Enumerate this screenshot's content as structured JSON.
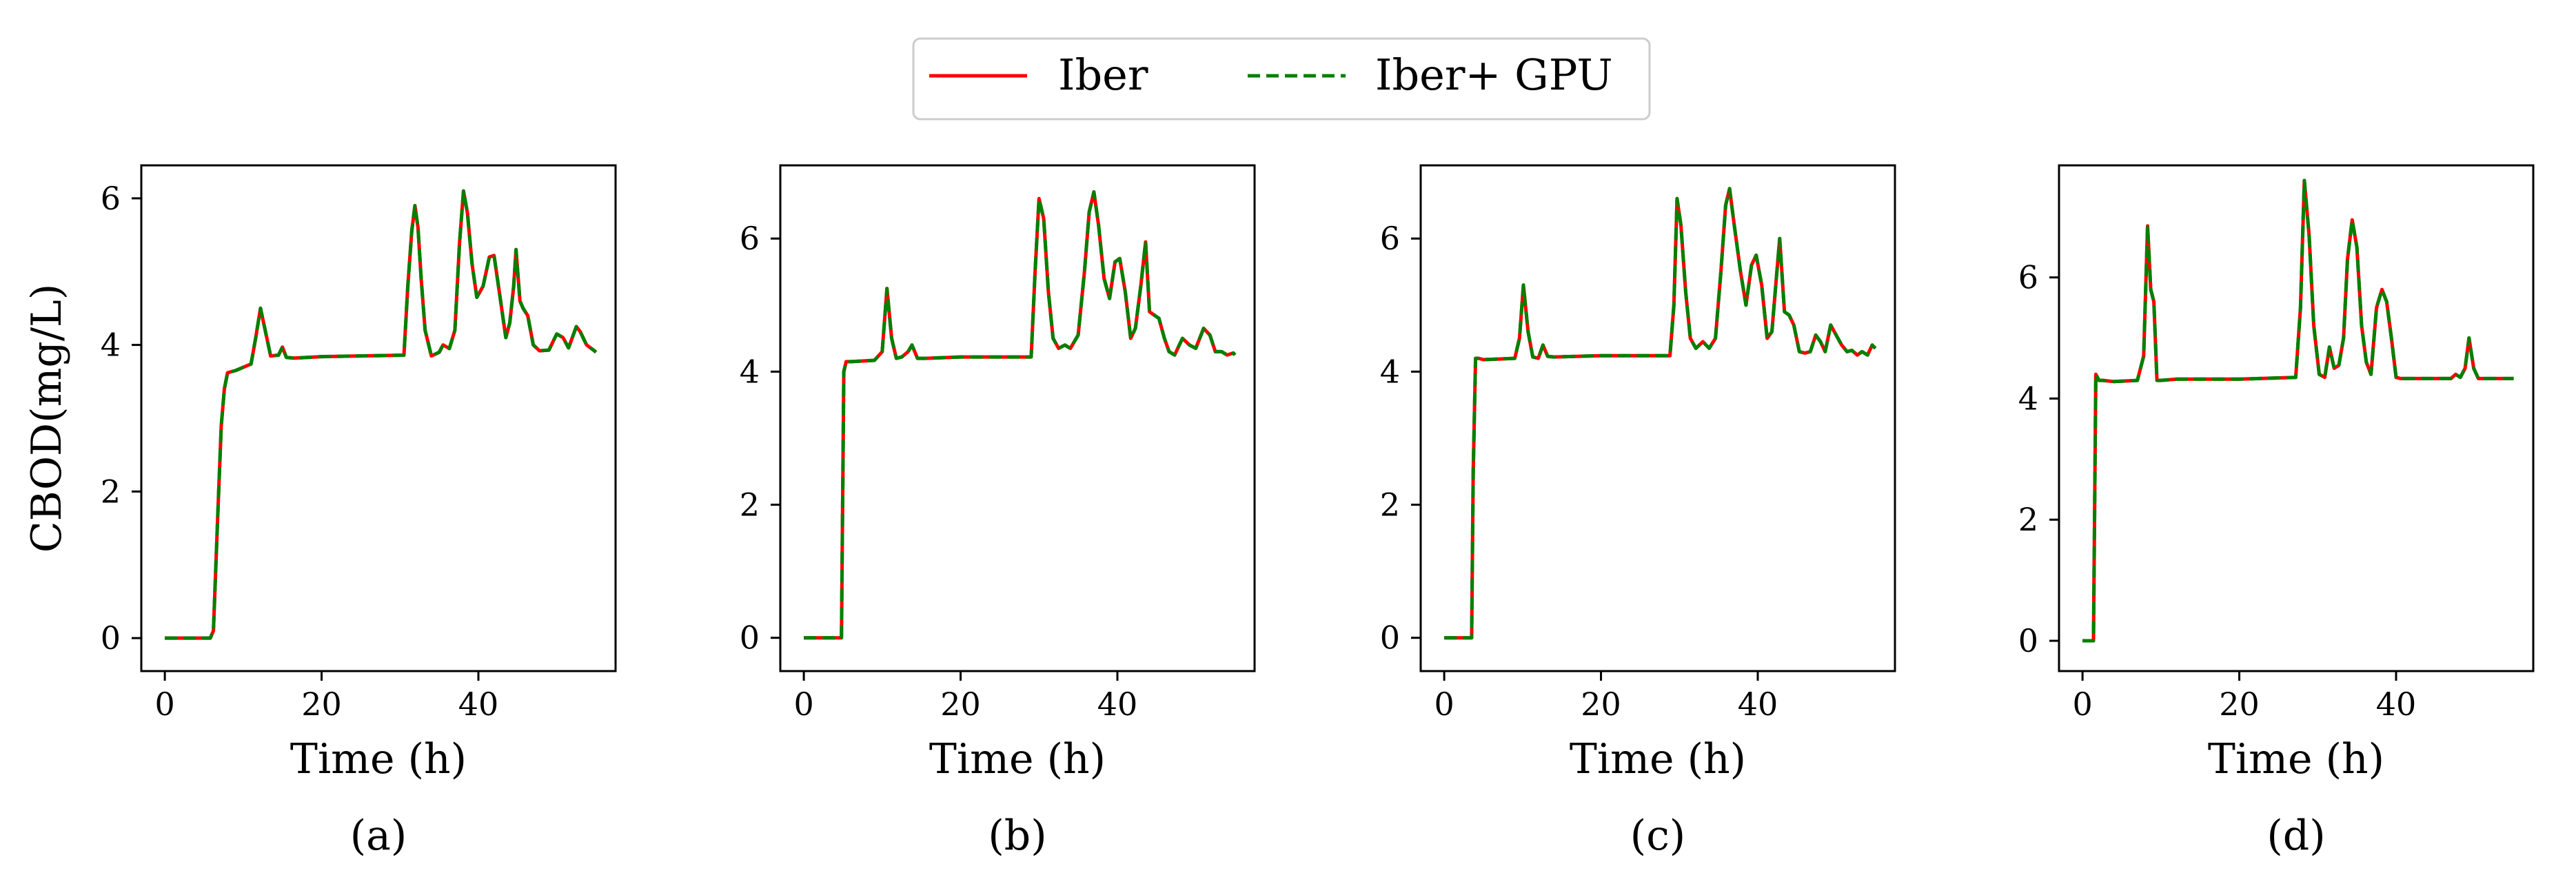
{
  "legend": {
    "entries": [
      {
        "label": "Iber",
        "color": "#ff0000",
        "style": "solid"
      },
      {
        "label": "Iber+ GPU",
        "color": "#008000",
        "style": "dashed"
      }
    ]
  },
  "chart_data": [
    {
      "type": "line",
      "panel_label": "(a)",
      "xlabel": "Time (h)",
      "ylabel": "CBOD(mg/L)",
      "xlim": [
        -3,
        57.5
      ],
      "ylim": [
        -0.45,
        6.45
      ],
      "xticks": [
        0,
        20,
        40
      ],
      "yticks": [
        0,
        2,
        4,
        6
      ],
      "series": [
        {
          "name": "Iber",
          "color": "#ff0000",
          "x": [
            0,
            5.8,
            6.2,
            6.8,
            7.2,
            7.6,
            8,
            9,
            11,
            11.6,
            12.2,
            12.8,
            13.5,
            14.5,
            15,
            15.5,
            16.5,
            20,
            30.5,
            31,
            31.5,
            31.9,
            32.3,
            32.7,
            33.2,
            34,
            35,
            35.5,
            36.3,
            37,
            37.6,
            38.1,
            38.6,
            39.2,
            39.8,
            40.6,
            41.4,
            42,
            42.7,
            43.5,
            44,
            44.5,
            44.8,
            45.3,
            45.7,
            46.3,
            47,
            47.8,
            49,
            50,
            50.8,
            51.5,
            52.5,
            53,
            53.8,
            54.8,
            55
          ],
          "y": [
            0,
            0,
            0.1,
            1.8,
            2.9,
            3.4,
            3.62,
            3.65,
            3.74,
            4.1,
            4.5,
            4.2,
            3.85,
            3.86,
            3.97,
            3.83,
            3.82,
            3.84,
            3.86,
            4.8,
            5.55,
            5.9,
            5.6,
            4.9,
            4.2,
            3.85,
            3.9,
            4.0,
            3.95,
            4.2,
            5.4,
            6.1,
            5.8,
            5.1,
            4.65,
            4.8,
            5.2,
            5.22,
            4.7,
            4.1,
            4.3,
            4.8,
            5.3,
            4.6,
            4.5,
            4.4,
            4.0,
            3.92,
            3.93,
            4.15,
            4.1,
            3.96,
            4.25,
            4.18,
            4.0,
            3.92,
            3.9
          ]
        },
        {
          "name": "Iber+ GPU",
          "color": "#008000",
          "x": [
            0,
            5.8,
            6.2,
            6.8,
            7.2,
            7.6,
            8,
            9,
            11,
            11.6,
            12.2,
            12.8,
            13.5,
            14.5,
            15,
            15.5,
            16.5,
            20,
            30.5,
            31,
            31.5,
            31.9,
            32.3,
            32.7,
            33.2,
            34,
            35,
            35.5,
            36.3,
            37,
            37.6,
            38.1,
            38.6,
            39.2,
            39.8,
            40.6,
            41.4,
            42,
            42.7,
            43.5,
            44,
            44.5,
            44.8,
            45.3,
            45.7,
            46.3,
            47,
            47.8,
            49,
            50,
            50.8,
            51.5,
            52.5,
            53,
            53.8,
            54.8,
            55
          ],
          "y": [
            0,
            0,
            0.1,
            1.8,
            2.9,
            3.4,
            3.62,
            3.65,
            3.74,
            4.1,
            4.5,
            4.2,
            3.85,
            3.86,
            3.97,
            3.83,
            3.82,
            3.84,
            3.86,
            4.8,
            5.55,
            5.9,
            5.6,
            4.9,
            4.2,
            3.85,
            3.9,
            4.0,
            3.95,
            4.2,
            5.4,
            6.1,
            5.8,
            5.1,
            4.65,
            4.8,
            5.2,
            5.22,
            4.7,
            4.1,
            4.3,
            4.8,
            5.3,
            4.6,
            4.5,
            4.4,
            4.0,
            3.92,
            3.93,
            4.15,
            4.1,
            3.96,
            4.25,
            4.18,
            4.0,
            3.92,
            3.9
          ]
        }
      ]
    },
    {
      "type": "line",
      "panel_label": "(b)",
      "xlabel": "Time (h)",
      "ylabel": "",
      "xlim": [
        -3,
        57.5
      ],
      "ylim": [
        -0.5,
        7.1
      ],
      "xticks": [
        0,
        20,
        40
      ],
      "yticks": [
        0,
        2,
        4,
        6
      ],
      "series": [
        {
          "name": "Iber",
          "color": "#ff0000",
          "x": [
            0,
            4.8,
            5.1,
            5.4,
            6,
            9,
            10,
            10.6,
            11.2,
            11.8,
            12.5,
            13.3,
            13.8,
            14.5,
            15.5,
            20,
            29,
            29.5,
            30,
            30.6,
            31.2,
            31.8,
            32.5,
            33.3,
            34,
            35,
            35.8,
            36.4,
            37,
            37.6,
            38.3,
            39,
            39.7,
            40.3,
            41,
            41.7,
            42.3,
            43,
            43.6,
            44.1,
            44.7,
            45.3,
            46,
            46.6,
            47.3,
            48.3,
            49.2,
            50,
            51,
            51.8,
            52.5,
            53.3,
            54,
            54.8,
            55
          ],
          "y": [
            0,
            0,
            4.0,
            4.15,
            4.15,
            4.17,
            4.3,
            5.25,
            4.5,
            4.2,
            4.22,
            4.3,
            4.4,
            4.2,
            4.2,
            4.22,
            4.22,
            5.5,
            6.6,
            6.3,
            5.2,
            4.5,
            4.35,
            4.4,
            4.35,
            4.55,
            5.5,
            6.4,
            6.7,
            6.2,
            5.4,
            5.1,
            5.65,
            5.7,
            5.2,
            4.5,
            4.65,
            5.3,
            5.95,
            4.9,
            4.85,
            4.8,
            4.5,
            4.3,
            4.25,
            4.5,
            4.4,
            4.35,
            4.65,
            4.55,
            4.3,
            4.3,
            4.25,
            4.28,
            4.25
          ]
        },
        {
          "name": "Iber+ GPU",
          "color": "#008000",
          "x": [
            0,
            4.8,
            5.1,
            5.4,
            6,
            9,
            10,
            10.6,
            11.2,
            11.8,
            12.5,
            13.3,
            13.8,
            14.5,
            15.5,
            20,
            29,
            29.5,
            30,
            30.6,
            31.2,
            31.8,
            32.5,
            33.3,
            34,
            35,
            35.8,
            36.4,
            37,
            37.6,
            38.3,
            39,
            39.7,
            40.3,
            41,
            41.7,
            42.3,
            43,
            43.6,
            44.1,
            44.7,
            45.3,
            46,
            46.6,
            47.3,
            48.3,
            49.2,
            50,
            51,
            51.8,
            52.5,
            53.3,
            54,
            54.8,
            55
          ],
          "y": [
            0,
            0,
            4.0,
            4.15,
            4.15,
            4.17,
            4.3,
            5.25,
            4.5,
            4.2,
            4.22,
            4.3,
            4.4,
            4.2,
            4.2,
            4.22,
            4.22,
            5.5,
            6.6,
            6.3,
            5.2,
            4.5,
            4.35,
            4.4,
            4.35,
            4.55,
            5.5,
            6.4,
            6.7,
            6.2,
            5.4,
            5.1,
            5.65,
            5.7,
            5.2,
            4.5,
            4.65,
            5.3,
            5.95,
            4.9,
            4.85,
            4.8,
            4.5,
            4.3,
            4.25,
            4.5,
            4.4,
            4.35,
            4.65,
            4.55,
            4.3,
            4.3,
            4.25,
            4.28,
            4.25
          ]
        }
      ]
    },
    {
      "type": "line",
      "panel_label": "(c)",
      "xlabel": "Time (h)",
      "ylabel": "",
      "xlim": [
        -3,
        57.5
      ],
      "ylim": [
        -0.5,
        7.1
      ],
      "xticks": [
        0,
        20,
        40
      ],
      "yticks": [
        0,
        2,
        4,
        6
      ],
      "series": [
        {
          "name": "Iber",
          "color": "#ff0000",
          "x": [
            0,
            3.5,
            3.7,
            4.0,
            4.4,
            5,
            9,
            9.6,
            10.1,
            10.7,
            11.3,
            12,
            12.6,
            13.2,
            14,
            20,
            28.8,
            29.3,
            29.7,
            30.2,
            30.8,
            31.4,
            32.1,
            33,
            33.8,
            34.6,
            35.3,
            35.9,
            36.4,
            37,
            37.8,
            38.5,
            39.2,
            39.8,
            40.5,
            41.2,
            41.8,
            42.3,
            42.8,
            43.4,
            44,
            44.6,
            45.3,
            46,
            46.7,
            47.4,
            48,
            48.6,
            49.3,
            50,
            50.7,
            51.4,
            52,
            52.7,
            53.3,
            54,
            54.6,
            55
          ],
          "y": [
            0,
            0,
            2.5,
            4.2,
            4.2,
            4.18,
            4.2,
            4.5,
            5.3,
            4.6,
            4.22,
            4.2,
            4.4,
            4.23,
            4.22,
            4.24,
            4.24,
            5.0,
            6.6,
            6.2,
            5.2,
            4.5,
            4.35,
            4.45,
            4.35,
            4.5,
            5.5,
            6.5,
            6.75,
            6.2,
            5.5,
            5.0,
            5.6,
            5.75,
            5.3,
            4.5,
            4.6,
            5.3,
            6.0,
            4.9,
            4.85,
            4.7,
            4.3,
            4.28,
            4.3,
            4.55,
            4.45,
            4.3,
            4.7,
            4.55,
            4.4,
            4.3,
            4.32,
            4.25,
            4.3,
            4.25,
            4.4,
            4.35
          ]
        },
        {
          "name": "Iber+ GPU",
          "color": "#008000",
          "x": [
            0,
            3.5,
            3.7,
            4.0,
            4.4,
            5,
            9,
            9.6,
            10.1,
            10.7,
            11.3,
            12,
            12.6,
            13.2,
            14,
            20,
            28.8,
            29.3,
            29.7,
            30.2,
            30.8,
            31.4,
            32.1,
            33,
            33.8,
            34.6,
            35.3,
            35.9,
            36.4,
            37,
            37.8,
            38.5,
            39.2,
            39.8,
            40.5,
            41.2,
            41.8,
            42.3,
            42.8,
            43.4,
            44,
            44.6,
            45.3,
            46,
            46.7,
            47.4,
            48,
            48.6,
            49.3,
            50,
            50.7,
            51.4,
            52,
            52.7,
            53.3,
            54,
            54.6,
            55
          ],
          "y": [
            0,
            0,
            2.5,
            4.2,
            4.2,
            4.18,
            4.2,
            4.5,
            5.3,
            4.6,
            4.22,
            4.2,
            4.4,
            4.23,
            4.22,
            4.24,
            4.24,
            5.0,
            6.6,
            6.2,
            5.2,
            4.5,
            4.35,
            4.45,
            4.35,
            4.5,
            5.5,
            6.5,
            6.75,
            6.2,
            5.5,
            5.0,
            5.6,
            5.75,
            5.3,
            4.5,
            4.6,
            5.3,
            6.0,
            4.9,
            4.85,
            4.7,
            4.3,
            4.28,
            4.3,
            4.55,
            4.45,
            4.3,
            4.7,
            4.55,
            4.4,
            4.3,
            4.32,
            4.25,
            4.3,
            4.25,
            4.4,
            4.35
          ]
        }
      ]
    },
    {
      "type": "line",
      "panel_label": "(d)",
      "xlabel": "Time (h)",
      "ylabel": "",
      "xlim": [
        -3,
        57.5
      ],
      "ylim": [
        -0.5,
        7.85
      ],
      "xticks": [
        0,
        20,
        40
      ],
      "yticks": [
        0,
        2,
        4,
        6
      ],
      "series": [
        {
          "name": "Iber",
          "color": "#ff0000",
          "x": [
            0,
            1.4,
            1.7,
            2.1,
            2.6,
            4,
            7,
            7.8,
            8.3,
            8.7,
            9.1,
            9.5,
            10,
            12,
            20,
            27.2,
            27.8,
            28.3,
            28.9,
            29.5,
            30.2,
            30.9,
            31.5,
            32.1,
            32.7,
            33.3,
            33.8,
            34.4,
            35,
            35.6,
            36.2,
            36.8,
            37.5,
            38.2,
            38.8,
            39.4,
            40,
            40.6,
            41.3,
            42,
            45,
            47,
            47.6,
            48.2,
            48.8,
            49.3,
            49.9,
            50.5,
            51,
            55
          ],
          "y": [
            0,
            0,
            4.4,
            4.3,
            4.3,
            4.28,
            4.3,
            4.7,
            6.85,
            5.8,
            5.6,
            4.3,
            4.3,
            4.32,
            4.32,
            4.35,
            5.5,
            7.6,
            6.7,
            5.2,
            4.4,
            4.35,
            4.85,
            4.5,
            4.55,
            5.0,
            6.3,
            6.95,
            6.5,
            5.2,
            4.6,
            4.4,
            5.5,
            5.8,
            5.6,
            5.0,
            4.35,
            4.33,
            4.33,
            4.33,
            4.33,
            4.33,
            4.4,
            4.35,
            4.5,
            5.0,
            4.5,
            4.33,
            4.33,
            4.33
          ]
        },
        {
          "name": "Iber+ GPU",
          "color": "#008000",
          "x": [
            0,
            1.4,
            1.7,
            2.1,
            2.6,
            4,
            7,
            7.8,
            8.3,
            8.7,
            9.1,
            9.5,
            10,
            12,
            20,
            27.2,
            27.8,
            28.3,
            28.9,
            29.5,
            30.2,
            30.9,
            31.5,
            32.1,
            32.7,
            33.3,
            33.8,
            34.4,
            35,
            35.6,
            36.2,
            36.8,
            37.5,
            38.2,
            38.8,
            39.4,
            40,
            40.6,
            41.3,
            42,
            45,
            47,
            47.6,
            48.2,
            48.8,
            49.3,
            49.9,
            50.5,
            51,
            55
          ],
          "y": [
            0,
            0,
            4.4,
            4.3,
            4.3,
            4.28,
            4.3,
            4.7,
            6.85,
            5.8,
            5.6,
            4.3,
            4.3,
            4.32,
            4.32,
            4.35,
            5.5,
            7.6,
            6.7,
            5.2,
            4.4,
            4.35,
            4.85,
            4.5,
            4.55,
            5.0,
            6.3,
            6.95,
            6.5,
            5.2,
            4.6,
            4.4,
            5.5,
            5.8,
            5.6,
            5.0,
            4.35,
            4.33,
            4.33,
            4.33,
            4.33,
            4.33,
            4.4,
            4.35,
            4.5,
            5.0,
            4.5,
            4.33,
            4.33,
            4.33
          ]
        }
      ]
    }
  ]
}
